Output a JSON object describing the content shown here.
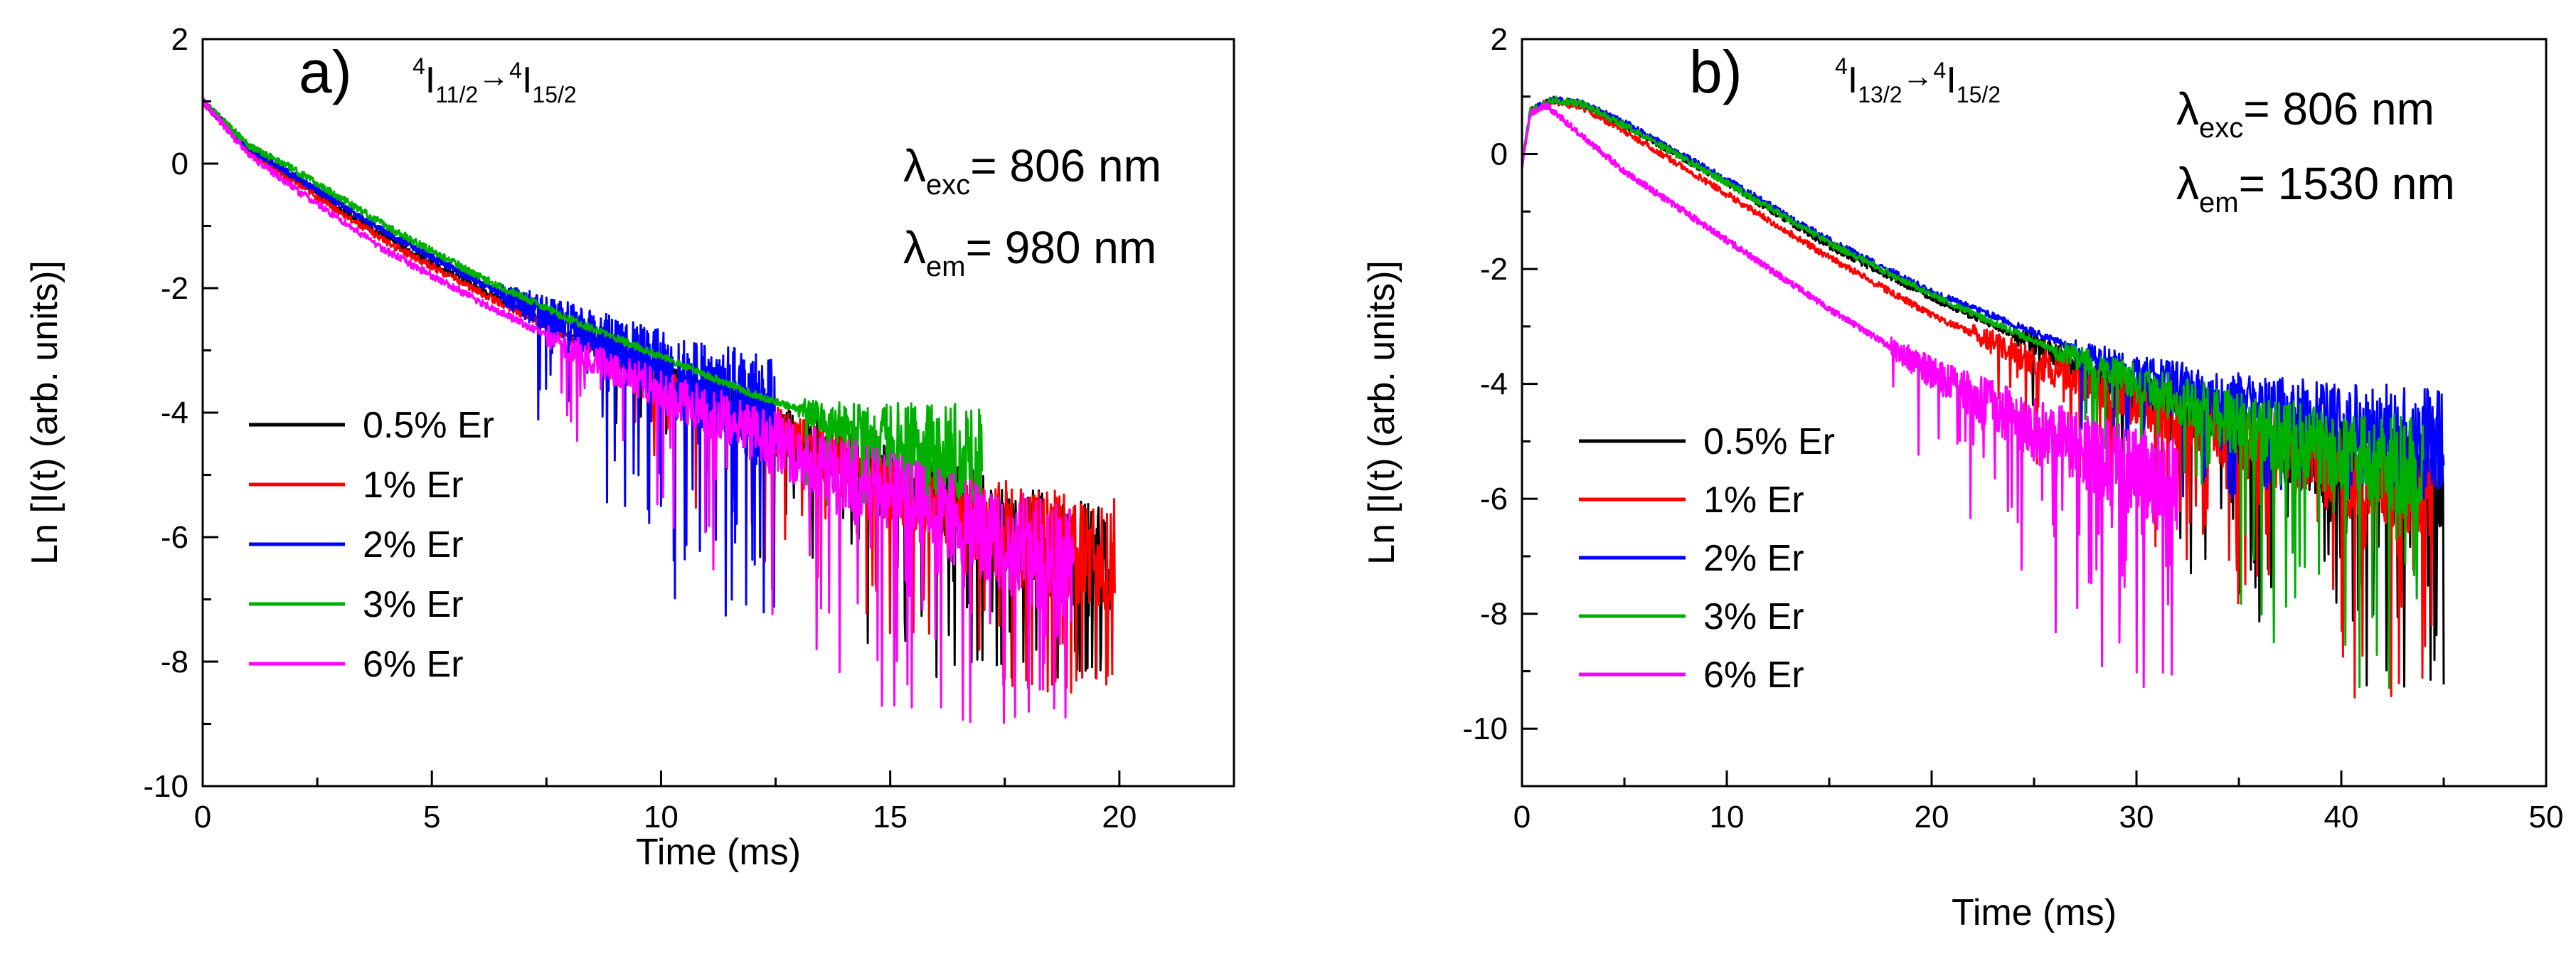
{
  "chart_data": [
    {
      "type": "line",
      "panel_label": "a)",
      "transition": {
        "upper_sup": "4",
        "upper_base": "I",
        "upper_sub": "11/2",
        "arrow": "→",
        "lower_sup": "4",
        "lower_base": "I",
        "lower_sub": "15/2"
      },
      "annotations": [
        {
          "symbol": "λ",
          "sub": "exc",
          "text": "= 806 nm"
        },
        {
          "symbol": "λ",
          "sub": "em",
          "text": "= 980 nm"
        }
      ],
      "xlabel": "Time (ms)",
      "ylabel": "Ln [I(t) (arb. units)]",
      "xlim": [
        0,
        22.5
      ],
      "ylim": [
        -10,
        2
      ],
      "xticks": [
        0,
        5,
        10,
        15,
        20
      ],
      "yticks": [
        -10,
        -8,
        -6,
        -4,
        -2,
        0,
        2
      ],
      "series": [
        {
          "name": "0.5% Er",
          "color": "#000000",
          "x_end": 19.8,
          "decay": [
            [
              0,
              1.0
            ],
            [
              1,
              0.25
            ],
            [
              2,
              -0.25
            ],
            [
              4,
              -1.2
            ],
            [
              6,
              -2.0
            ],
            [
              8,
              -2.75
            ],
            [
              10,
              -3.45
            ],
            [
              12,
              -4.1
            ],
            [
              14,
              -4.8
            ],
            [
              16,
              -5.4
            ],
            [
              18,
              -6.0
            ],
            [
              19.8,
              -6.5
            ]
          ],
          "noise_onset": 9,
          "noise_floor": -8.3
        },
        {
          "name": "1% Er",
          "color": "#ff0000",
          "x_end": 19.9,
          "decay": [
            [
              0,
              1.0
            ],
            [
              1,
              0.2
            ],
            [
              2,
              -0.3
            ],
            [
              4,
              -1.25
            ],
            [
              6,
              -2.05
            ],
            [
              8,
              -2.8
            ],
            [
              10,
              -3.5
            ],
            [
              12,
              -4.15
            ],
            [
              14,
              -4.85
            ],
            [
              16,
              -5.45
            ],
            [
              18,
              -6.0
            ],
            [
              19.9,
              -6.3
            ]
          ],
          "noise_onset": 9,
          "noise_floor": -8.5
        },
        {
          "name": "2% Er",
          "color": "#0000ff",
          "x_end": 12.5,
          "decay": [
            [
              0,
              1.0
            ],
            [
              1,
              0.25
            ],
            [
              2,
              -0.2
            ],
            [
              4,
              -1.1
            ],
            [
              6,
              -1.9
            ],
            [
              8,
              -2.6
            ],
            [
              10,
              -3.3
            ],
            [
              12,
              -3.9
            ],
            [
              12.5,
              -4.1
            ]
          ],
          "noise_onset": 6.5,
          "noise_floor": -7.3
        },
        {
          "name": "3% Er",
          "color": "#00b000",
          "x_end": 17.0,
          "decay": [
            [
              0,
              1.0
            ],
            [
              1,
              0.3
            ],
            [
              2,
              -0.1
            ],
            [
              4,
              -1.0
            ],
            [
              6,
              -1.8
            ],
            [
              8,
              -2.5
            ],
            [
              10,
              -3.1
            ],
            [
              12,
              -3.7
            ],
            [
              14,
              -4.2
            ],
            [
              16,
              -4.6
            ],
            [
              17,
              -4.8
            ]
          ],
          "noise_onset": 13,
          "noise_floor": -5.5
        },
        {
          "name": "6% Er",
          "color": "#ff00ff",
          "x_end": 19.0,
          "decay": [
            [
              0,
              1.0
            ],
            [
              1,
              0.15
            ],
            [
              2,
              -0.4
            ],
            [
              4,
              -1.4
            ],
            [
              6,
              -2.2
            ],
            [
              8,
              -2.95
            ],
            [
              10,
              -3.65
            ],
            [
              12,
              -4.3
            ],
            [
              14,
              -5.0
            ],
            [
              16,
              -5.6
            ],
            [
              18,
              -6.2
            ],
            [
              19,
              -6.5
            ]
          ],
          "noise_onset": 7.5,
          "noise_floor": -9.0
        }
      ]
    },
    {
      "type": "line",
      "panel_label": "b)",
      "transition": {
        "upper_sup": "4",
        "upper_base": "I",
        "upper_sub": "13/2",
        "arrow": "→",
        "lower_sup": "4",
        "lower_base": "I",
        "lower_sub": "15/2"
      },
      "annotations": [
        {
          "symbol": "λ",
          "sub": "exc",
          "text": "= 806 nm"
        },
        {
          "symbol": "λ",
          "sub": "em",
          "text": "= 1530 nm"
        }
      ],
      "xlabel": "Time (ms)",
      "ylabel": "Ln [I(t) (arb. units)]",
      "xlim": [
        0,
        50
      ],
      "ylim": [
        -11,
        2
      ],
      "xticks": [
        0,
        10,
        20,
        30,
        40,
        50
      ],
      "yticks": [
        -10,
        -8,
        -6,
        -4,
        -2,
        0,
        2
      ],
      "series": [
        {
          "name": "0.5% Er",
          "color": "#000000",
          "x_end": 45,
          "decay": [
            [
              0,
              -0.2
            ],
            [
              0.4,
              0.75
            ],
            [
              1.5,
              0.95
            ],
            [
              3,
              0.85
            ],
            [
              5,
              0.5
            ],
            [
              10,
              -0.5
            ],
            [
              15,
              -1.6
            ],
            [
              20,
              -2.5
            ],
            [
              25,
              -3.3
            ],
            [
              30,
              -4.1
            ],
            [
              35,
              -4.8
            ],
            [
              40,
              -5.4
            ],
            [
              45,
              -5.6
            ]
          ],
          "noise_onset": 24,
          "noise_floor": -9.3
        },
        {
          "name": "1% Er",
          "color": "#ff0000",
          "x_end": 44.5,
          "decay": [
            [
              0,
              -0.2
            ],
            [
              0.4,
              0.75
            ],
            [
              1.5,
              0.93
            ],
            [
              3,
              0.8
            ],
            [
              5,
              0.4
            ],
            [
              10,
              -0.7
            ],
            [
              15,
              -1.8
            ],
            [
              20,
              -2.8
            ],
            [
              25,
              -3.6
            ],
            [
              30,
              -4.3
            ],
            [
              35,
              -5.0
            ],
            [
              40,
              -5.5
            ],
            [
              44.5,
              -5.8
            ]
          ],
          "noise_onset": 22,
          "noise_floor": -9.6
        },
        {
          "name": "2% Er",
          "color": "#0000ff",
          "x_end": 45,
          "decay": [
            [
              0,
              -0.2
            ],
            [
              0.4,
              0.75
            ],
            [
              1.5,
              0.95
            ],
            [
              3,
              0.88
            ],
            [
              5,
              0.55
            ],
            [
              10,
              -0.45
            ],
            [
              15,
              -1.5
            ],
            [
              20,
              -2.4
            ],
            [
              25,
              -3.1
            ],
            [
              30,
              -3.8
            ],
            [
              35,
              -4.3
            ],
            [
              40,
              -4.7
            ],
            [
              45,
              -5.0
            ]
          ],
          "noise_onset": 27,
          "noise_floor": -6.0
        },
        {
          "name": "3% Er",
          "color": "#00b000",
          "x_end": 44,
          "decay": [
            [
              0,
              -0.2
            ],
            [
              0.4,
              0.75
            ],
            [
              1.5,
              0.95
            ],
            [
              3,
              0.86
            ],
            [
              5,
              0.5
            ],
            [
              10,
              -0.5
            ],
            [
              15,
              -1.55
            ],
            [
              20,
              -2.45
            ],
            [
              25,
              -3.25
            ],
            [
              30,
              -4.0
            ],
            [
              35,
              -4.7
            ],
            [
              40,
              -5.2
            ],
            [
              44,
              -5.5
            ]
          ],
          "noise_onset": 26,
          "noise_floor": -9.3
        },
        {
          "name": "6% Er",
          "color": "#ff00ff",
          "x_end": 32,
          "decay": [
            [
              0,
              -0.2
            ],
            [
              0.4,
              0.7
            ],
            [
              1.2,
              0.85
            ],
            [
              3,
              0.3
            ],
            [
              5,
              -0.3
            ],
            [
              10,
              -1.5
            ],
            [
              15,
              -2.7
            ],
            [
              20,
              -3.8
            ],
            [
              25,
              -4.8
            ],
            [
              30,
              -5.6
            ],
            [
              32,
              -5.9
            ]
          ],
          "noise_onset": 18,
          "noise_floor": -9.3
        }
      ]
    }
  ]
}
